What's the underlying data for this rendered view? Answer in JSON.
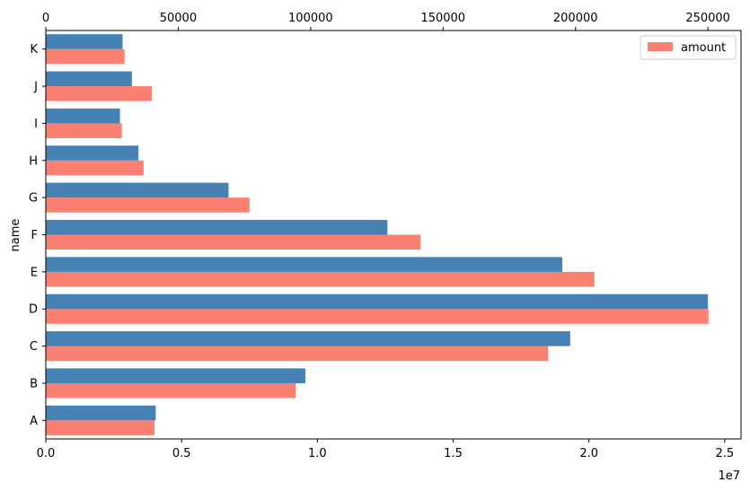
{
  "chart_data": {
    "type": "bar",
    "orientation": "horizontal",
    "categories": [
      "A",
      "B",
      "C",
      "D",
      "E",
      "F",
      "G",
      "H",
      "I",
      "J",
      "K"
    ],
    "ylabel": "name",
    "bottom_axis": {
      "ticks": [
        0,
        5000000,
        10000000,
        15000000,
        20000000,
        25000000
      ],
      "tick_labels": [
        "0.0",
        "0.5",
        "1.0",
        "1.5",
        "2.0",
        "2.5"
      ],
      "offset_label": "1e7",
      "xlim": [
        0,
        25600000
      ]
    },
    "top_axis": {
      "ticks": [
        0,
        50000,
        100000,
        150000,
        200000,
        250000
      ],
      "tick_labels": [
        "0",
        "50000",
        "100000",
        "150000",
        "200000",
        "250000"
      ],
      "xlim": [
        0,
        262500
      ]
    },
    "series": [
      {
        "name": "amount",
        "color": "#fa8072",
        "axis": "bottom",
        "values": [
          4000000,
          9200000,
          18500000,
          24400000,
          20200000,
          13800000,
          7500000,
          3600000,
          2800000,
          3900000,
          2900000
        ]
      },
      {
        "color": "#4682b4",
        "axis": "top",
        "values": [
          41500,
          98000,
          198000,
          250000,
          195000,
          129000,
          69000,
          35000,
          28000,
          32500,
          29000
        ]
      }
    ],
    "legend": {
      "position": "top-right",
      "entries": [
        "amount"
      ]
    }
  }
}
